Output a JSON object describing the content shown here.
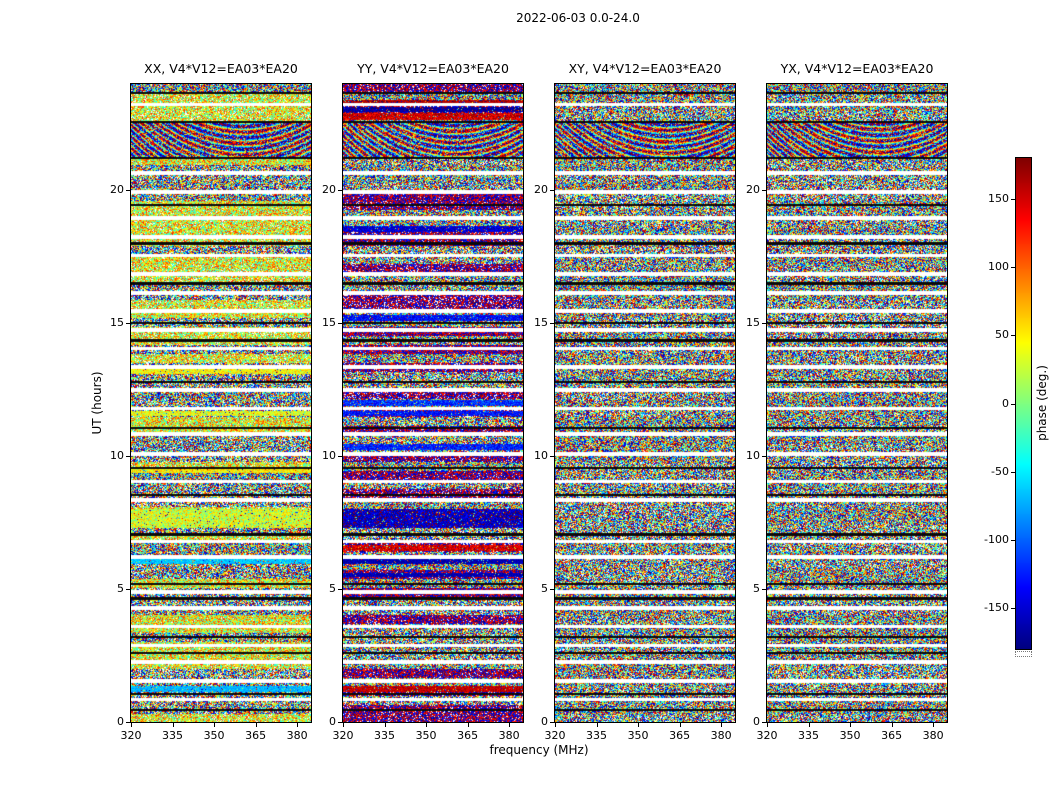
{
  "figure": {
    "title": "2022-06-03 0.0-24.0",
    "xlabel": "frequency (MHz)",
    "ylabel": "UT (hours)",
    "colorbar_label": "phase (deg.)"
  },
  "chart_data": {
    "type": "heatmap",
    "title": "2022-06-03 0.0-24.0",
    "value_kind": "visibility phase (deg.) vs frequency and time, 4 polarization products on baseline EA03*EA20",
    "panels": [
      {
        "id": "XX",
        "title": "XX, V4*V12=EA03*EA20",
        "seed": 101,
        "bias": "green",
        "coherent_bands": [
          {
            "hours": [
              13.38,
              13.1
            ],
            "phase": 45,
            "spread": 30
          },
          {
            "hours": [
              11.7,
              11.5
            ],
            "phase": 35,
            "spread": 35
          },
          {
            "hours": [
              9.6,
              9.38
            ],
            "phase": 50,
            "spread": 30
          },
          {
            "hours": [
              8.0,
              7.3
            ],
            "phase": 30,
            "spread": 45
          },
          {
            "hours": [
              6.15,
              5.95
            ],
            "phase": -65,
            "spread": 18
          },
          {
            "hours": [
              1.35,
              1.12
            ],
            "phase": -70,
            "spread": 15
          }
        ]
      },
      {
        "id": "YY",
        "title": "YY, V4*V12=EA03*EA20",
        "seed": 202,
        "bias": "extreme",
        "coherent_bands": [
          {
            "hours": [
              23.4,
              23.2
            ],
            "phase": 165,
            "spread": 18
          },
          {
            "hours": [
              23.15,
              22.95
            ],
            "phase": -168,
            "spread": 14
          },
          {
            "hours": [
              22.9,
              22.65
            ],
            "phase": 150,
            "spread": 30
          },
          {
            "hours": [
              18.65,
              18.42
            ],
            "phase": -150,
            "spread": 22
          },
          {
            "hours": [
              15.32,
              15.1
            ],
            "phase": -135,
            "spread": 28
          },
          {
            "hours": [
              12.1,
              11.88
            ],
            "phase": -120,
            "spread": 30
          },
          {
            "hours": [
              11.7,
              11.5
            ],
            "phase": -130,
            "spread": 25
          },
          {
            "hours": [
              10.45,
              10.24
            ],
            "phase": -125,
            "spread": 25
          },
          {
            "hours": [
              8.0,
              7.3
            ],
            "phase": -158,
            "spread": 30
          },
          {
            "hours": [
              6.65,
              6.45
            ],
            "phase": 150,
            "spread": 25
          },
          {
            "hours": [
              6.15,
              5.95
            ],
            "phase": -162,
            "spread": 14
          },
          {
            "hours": [
              5.62,
              5.44
            ],
            "phase": -162,
            "spread": 14
          },
          {
            "hours": [
              1.35,
              1.12
            ],
            "phase": 158,
            "spread": 18
          }
        ]
      },
      {
        "id": "XY",
        "title": "XY, V4*V12=EA03*EA20",
        "seed": 303,
        "bias": "none",
        "coherent_bands": []
      },
      {
        "id": "YX",
        "title": "YX, V4*V12=EA03*EA20",
        "seed": 404,
        "bias": "none",
        "coherent_bands": []
      }
    ],
    "x_axis": {
      "label": "frequency (MHz)",
      "range": [
        320,
        385
      ],
      "ticks": [
        320,
        335,
        350,
        365,
        380
      ]
    },
    "y_axis": {
      "label": "UT (hours)",
      "range": [
        0,
        24
      ],
      "ticks": [
        0,
        5,
        10,
        15,
        20
      ]
    },
    "colorbar": {
      "label": "phase (deg.)",
      "range": [
        -180,
        180
      ],
      "ticks": [
        150,
        100,
        50,
        0,
        -50,
        -100,
        -150
      ],
      "colormap": "jet"
    },
    "fringe_region_hours": [
      22.55,
      21.25
    ],
    "time_gaps_hours": [
      [
        23.3,
        23.18
      ],
      [
        20.72,
        20.58
      ],
      [
        20.02,
        19.88
      ],
      [
        19.02,
        18.88
      ],
      [
        18.32,
        18.18
      ],
      [
        17.62,
        17.48
      ],
      [
        16.92,
        16.78
      ],
      [
        16.22,
        16.08
      ],
      [
        15.52,
        15.38
      ],
      [
        14.82,
        14.68
      ],
      [
        14.12,
        13.98
      ],
      [
        13.42,
        13.28
      ],
      [
        12.55,
        12.42
      ],
      [
        11.85,
        11.72
      ],
      [
        10.9,
        10.76
      ],
      [
        10.15,
        10.02
      ],
      [
        9.12,
        8.98
      ],
      [
        8.42,
        8.28
      ],
      [
        6.85,
        6.72
      ],
      [
        6.28,
        6.15
      ],
      [
        4.95,
        4.82
      ],
      [
        4.35,
        4.22
      ],
      [
        3.65,
        3.52
      ],
      [
        2.95,
        2.82
      ],
      [
        2.32,
        2.18
      ],
      [
        1.62,
        1.48
      ],
      [
        0.92,
        0.78
      ]
    ],
    "flagged_rows_hours": [
      23.66,
      22.56,
      21.22,
      19.45,
      18.0,
      16.5,
      15.0,
      14.35,
      12.78,
      11.05,
      9.55,
      8.55,
      7.05,
      5.2,
      4.65,
      3.2,
      2.6,
      1.05,
      0.45
    ]
  }
}
